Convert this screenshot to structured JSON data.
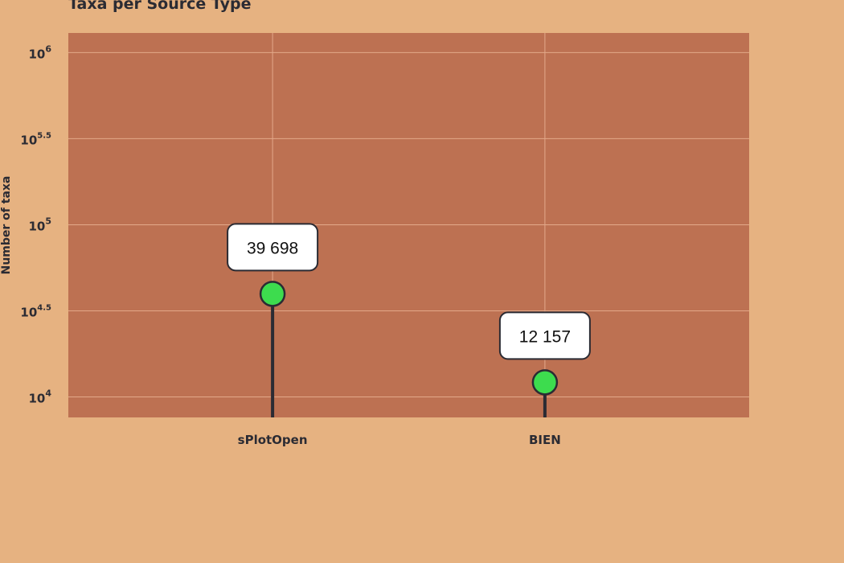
{
  "chart_data": {
    "type": "lollipop",
    "title": "Taxa per Source Type",
    "xlabel": "",
    "ylabel": "Number of taxa",
    "yscale": "log",
    "ylim": [
      7600,
      1300000
    ],
    "yticks": [
      {
        "value": 10000,
        "base": "10",
        "exp": "4"
      },
      {
        "value": 31623,
        "base": "10",
        "exp": "4.5"
      },
      {
        "value": 100000,
        "base": "10",
        "exp": "5"
      },
      {
        "value": 316228,
        "base": "10",
        "exp": "5.5"
      },
      {
        "value": 1000000,
        "base": "10",
        "exp": "6"
      }
    ],
    "categories": [
      "sPlotOpen",
      "BIEN"
    ],
    "values": [
      39698,
      12157
    ],
    "data_labels": [
      "39 698",
      "12 157"
    ],
    "grid": true,
    "legend": "none",
    "colors": {
      "background": "#E6B281",
      "plot_background": "#BD7152",
      "grid": "#E3A98A",
      "stem": "#2b2b33",
      "marker": "#3DDC4E",
      "label_box": "#FFFFFF",
      "text": "#2b2b33"
    }
  }
}
